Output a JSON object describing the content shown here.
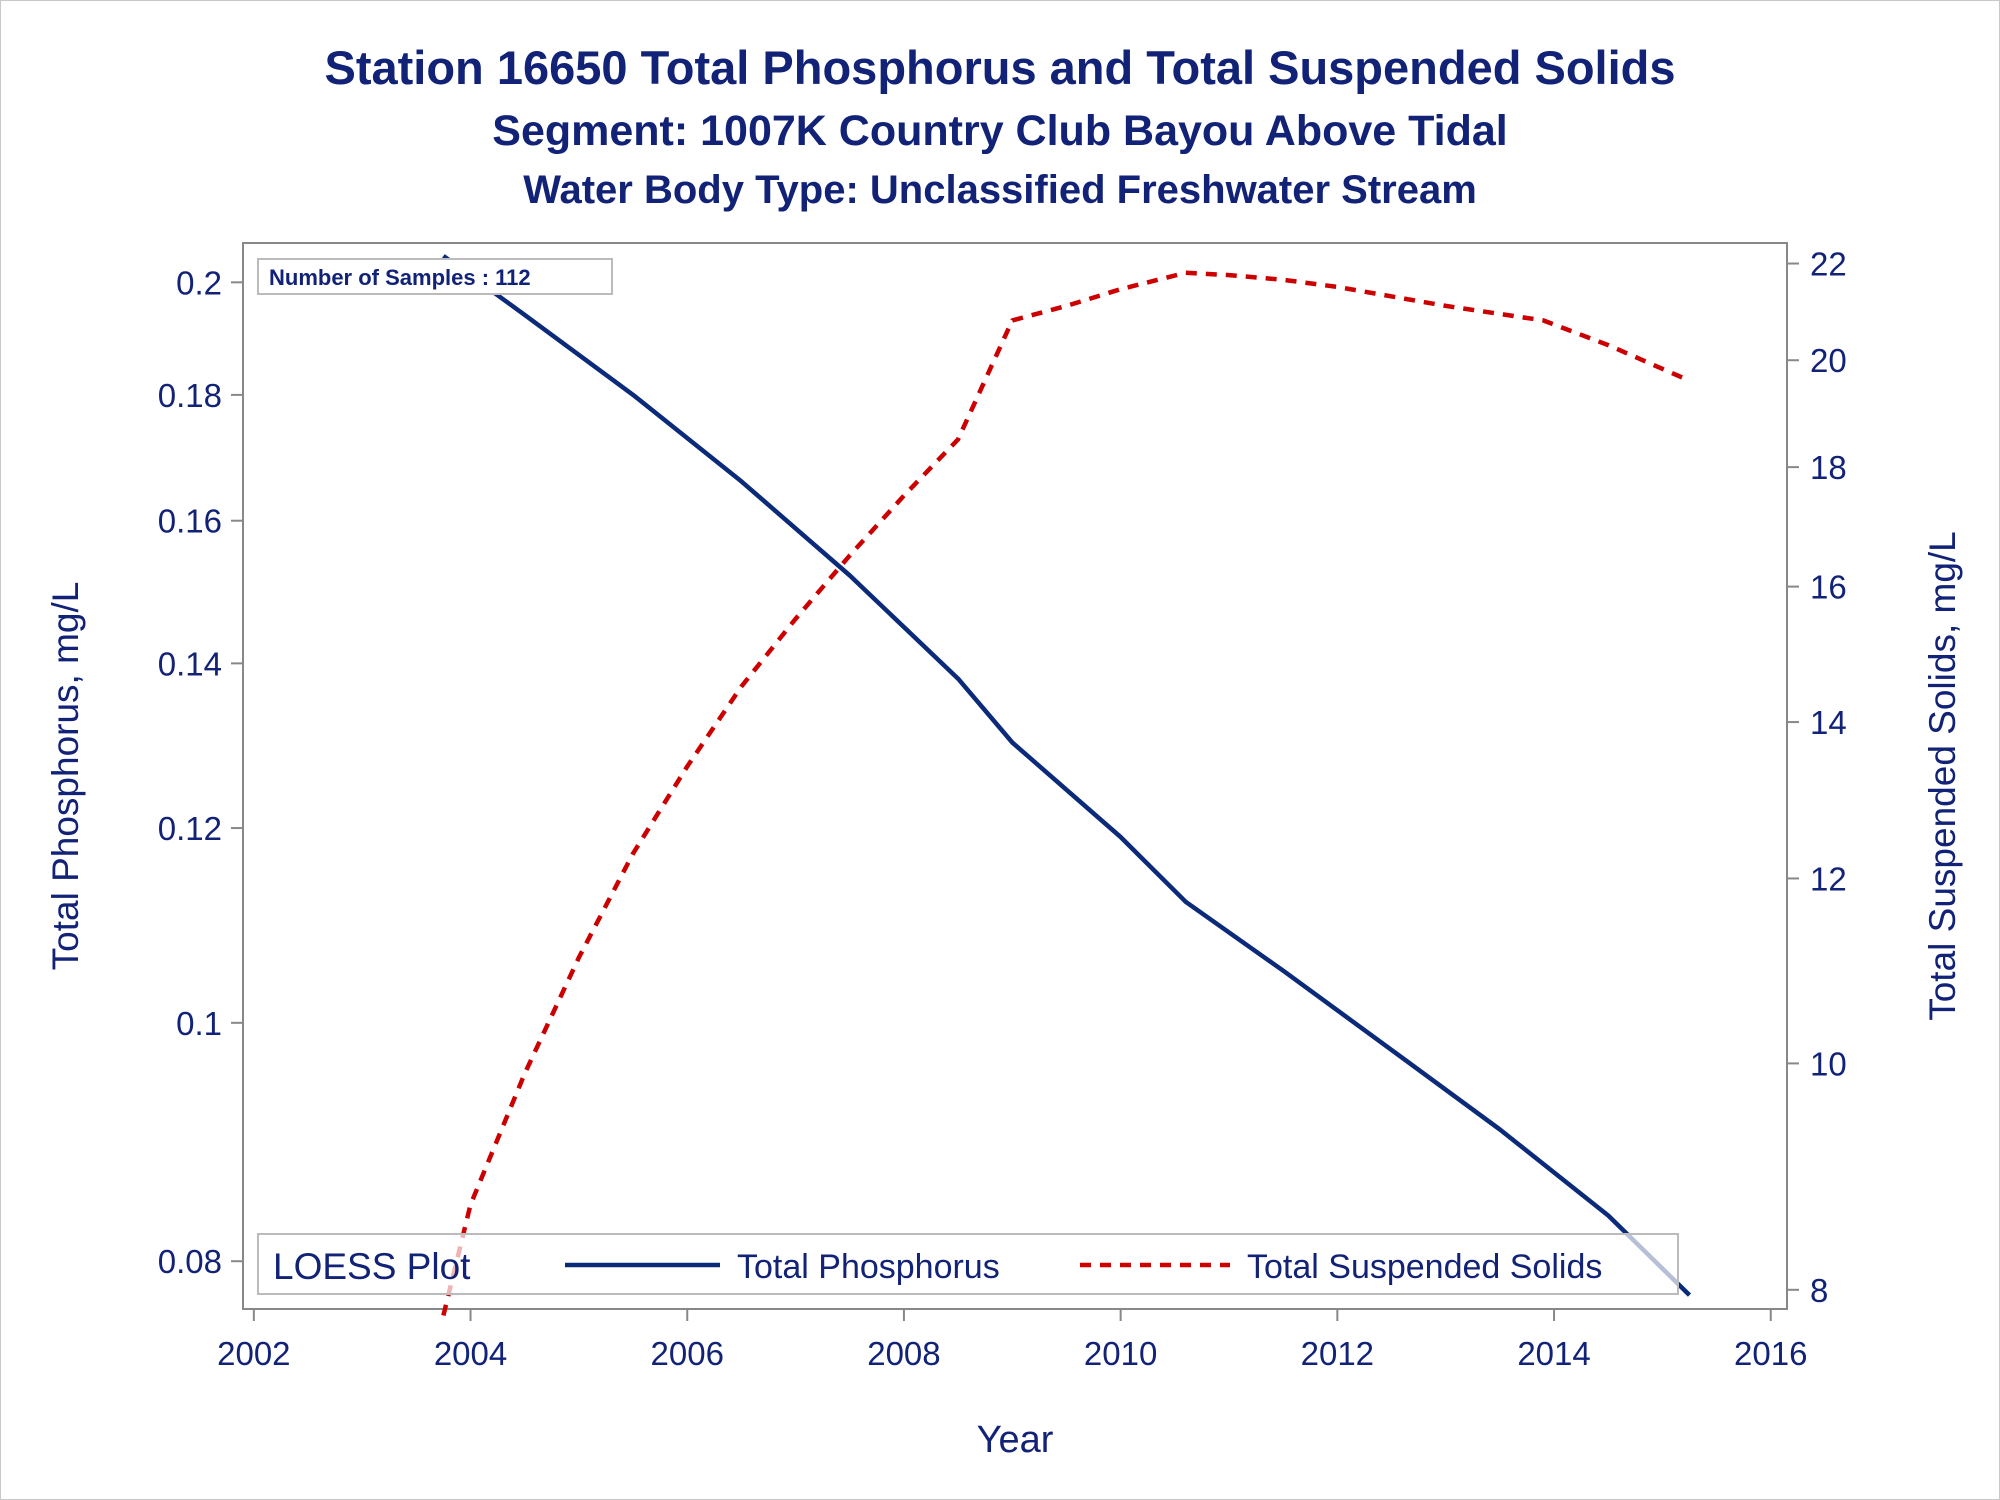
{
  "titles": {
    "line1": "Station 16650  Total Phosphorus and Total Suspended Solids",
    "line2": "Segment: 1007K  Country Club Bayou Above Tidal",
    "line3": "Water Body Type: Unclassified Freshwater Stream"
  },
  "inset_label": "Number of Samples : 112",
  "legend": {
    "title": "LOESS Plot",
    "items": [
      "Total Phosphorus",
      "Total Suspended Solids"
    ]
  },
  "colors": {
    "text": "#112277",
    "phosphorus": "#0b2a7a",
    "tss": "#cc0000",
    "axis": "#888888"
  },
  "chart_data": {
    "type": "line",
    "xlabel": "Year",
    "ylabel_left": "Total Phosphorus, mg/L",
    "ylabel_right": "Total Suspended Solids, mg/L",
    "y_scale": "log",
    "x_ticks": [
      2002,
      2004,
      2006,
      2008,
      2010,
      2012,
      2014,
      2016
    ],
    "xlim": [
      2001.9,
      2016.15
    ],
    "left_ticks": [
      0.08,
      0.1,
      0.12,
      0.14,
      0.16,
      0.18,
      0.2
    ],
    "left_tick_labels": [
      "0.08",
      "0.1",
      "0.12",
      "0.14",
      "0.16",
      "0.18",
      "0.2"
    ],
    "left_ylim": [
      0.0765,
      0.2075
    ],
    "right_ticks": [
      8,
      10,
      12,
      14,
      16,
      18,
      20,
      22
    ],
    "right_ylim": [
      7.85,
      22.45
    ],
    "series": [
      {
        "name": "Total Phosphorus",
        "axis": "left",
        "style": "solid",
        "x": [
          2003.75,
          2004.5,
          2005.5,
          2006.5,
          2007.5,
          2008.5,
          2009.0,
          2010.0,
          2010.6,
          2011.5,
          2012.5,
          2013.5,
          2014.5,
          2015.25
        ],
        "y": [
          0.205,
          0.194,
          0.18,
          0.166,
          0.152,
          0.138,
          0.13,
          0.119,
          0.112,
          0.105,
          0.0975,
          0.0905,
          0.0835,
          0.0775
        ]
      },
      {
        "name": "Total Suspended Solids",
        "axis": "right",
        "style": "dashed",
        "x": [
          2003.75,
          2004.0,
          2004.5,
          2005.0,
          2005.5,
          2006.0,
          2006.5,
          2007.0,
          2007.5,
          2008.0,
          2008.5,
          2009.0,
          2009.5,
          2010.0,
          2010.6,
          2011.0,
          2011.5,
          2012.0,
          2013.0,
          2013.9,
          2014.5,
          2015.25
        ],
        "y": [
          7.8,
          8.7,
          9.9,
          11.1,
          12.3,
          13.4,
          14.5,
          15.5,
          16.5,
          17.5,
          18.5,
          20.8,
          21.1,
          21.45,
          21.8,
          21.75,
          21.65,
          21.5,
          21.1,
          20.8,
          20.3,
          19.6
        ]
      }
    ]
  }
}
